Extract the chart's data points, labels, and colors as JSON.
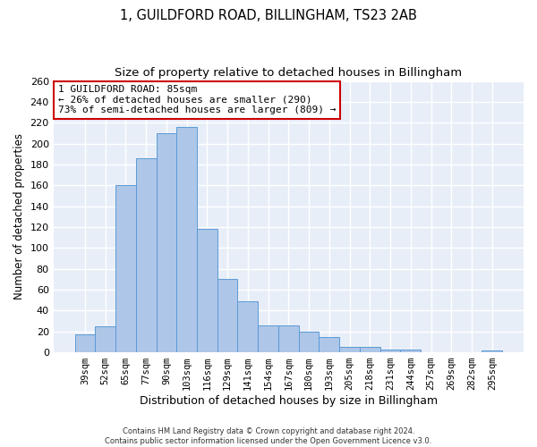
{
  "title": "1, GUILDFORD ROAD, BILLINGHAM, TS23 2AB",
  "subtitle": "Size of property relative to detached houses in Billingham",
  "xlabel": "Distribution of detached houses by size in Billingham",
  "ylabel": "Number of detached properties",
  "categories": [
    "39sqm",
    "52sqm",
    "65sqm",
    "77sqm",
    "90sqm",
    "103sqm",
    "116sqm",
    "129sqm",
    "141sqm",
    "154sqm",
    "167sqm",
    "180sqm",
    "193sqm",
    "205sqm",
    "218sqm",
    "231sqm",
    "244sqm",
    "257sqm",
    "269sqm",
    "282sqm",
    "295sqm"
  ],
  "values": [
    17,
    25,
    160,
    186,
    210,
    216,
    118,
    70,
    49,
    26,
    26,
    20,
    15,
    5,
    5,
    3,
    3,
    0,
    0,
    0,
    2
  ],
  "bar_color": "#aec6e8",
  "bar_edge_color": "#5b9bd5",
  "background_color": "#e8eef8",
  "grid_color": "#ffffff",
  "ylim": [
    0,
    260
  ],
  "yticks": [
    0,
    20,
    40,
    60,
    80,
    100,
    120,
    140,
    160,
    180,
    200,
    220,
    240,
    260
  ],
  "annotation_text": "1 GUILDFORD ROAD: 85sqm\n← 26% of detached houses are smaller (290)\n73% of semi-detached houses are larger (809) →",
  "annotation_box_color": "#ffffff",
  "annotation_border_color": "#cc0000",
  "footer_line1": "Contains HM Land Registry data © Crown copyright and database right 2024.",
  "footer_line2": "Contains public sector information licensed under the Open Government Licence v3.0.",
  "title_fontsize": 10.5,
  "subtitle_fontsize": 9.5,
  "xlabel_fontsize": 9,
  "ylabel_fontsize": 8.5,
  "tick_fontsize": 7.5,
  "ytick_fontsize": 8,
  "annotation_fontsize": 8,
  "footer_fontsize": 6
}
